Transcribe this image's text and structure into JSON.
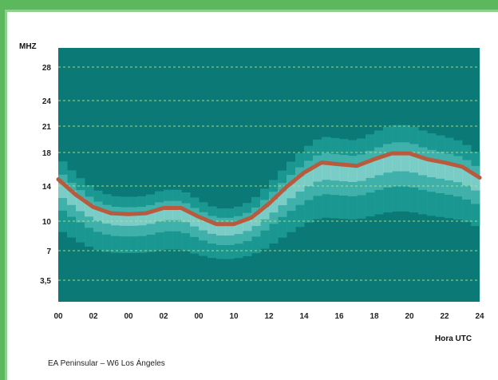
{
  "chart_data": {
    "type": "line",
    "ylabel": "MHZ",
    "xlabel": "Hora UTC",
    "caption": "EA Peninsular – W6 Los Ángeles",
    "y_ticks": [
      "3,5",
      "7",
      "10",
      "14",
      "18",
      "21",
      "24",
      "28"
    ],
    "x_ticks": [
      "00",
      "02",
      "00",
      "02",
      "00",
      "10",
      "12",
      "14",
      "16",
      "18",
      "20",
      "22",
      "24"
    ],
    "xlim": [
      0,
      24
    ],
    "grid": true,
    "series": [
      {
        "values": [
          [
            0,
            14.8
          ],
          [
            1,
            13.0
          ],
          [
            2,
            11.6
          ],
          [
            3,
            10.9
          ],
          [
            4,
            10.8
          ],
          [
            5,
            10.9
          ],
          [
            6,
            11.5
          ],
          [
            7,
            11.5
          ],
          [
            8,
            10.5
          ],
          [
            9,
            9.7
          ],
          [
            10,
            9.7
          ],
          [
            11,
            10.4
          ],
          [
            12,
            12.0
          ],
          [
            13,
            13.9
          ],
          [
            14,
            15.6
          ],
          [
            15,
            16.8
          ],
          [
            16,
            16.6
          ],
          [
            17,
            16.4
          ],
          [
            18,
            17.2
          ],
          [
            19,
            17.9
          ],
          [
            20,
            17.9
          ],
          [
            21,
            17.2
          ],
          [
            22,
            16.8
          ],
          [
            23,
            16.3
          ],
          [
            24,
            15.0
          ]
        ]
      }
    ],
    "colors": {
      "background": "#0b7a76",
      "heat_low": "#1f9c97",
      "heat_mid": "#49b6b0",
      "heat_high": "#8fd6cf",
      "line": "#b85a3e",
      "grid": "#e6e04a"
    }
  }
}
